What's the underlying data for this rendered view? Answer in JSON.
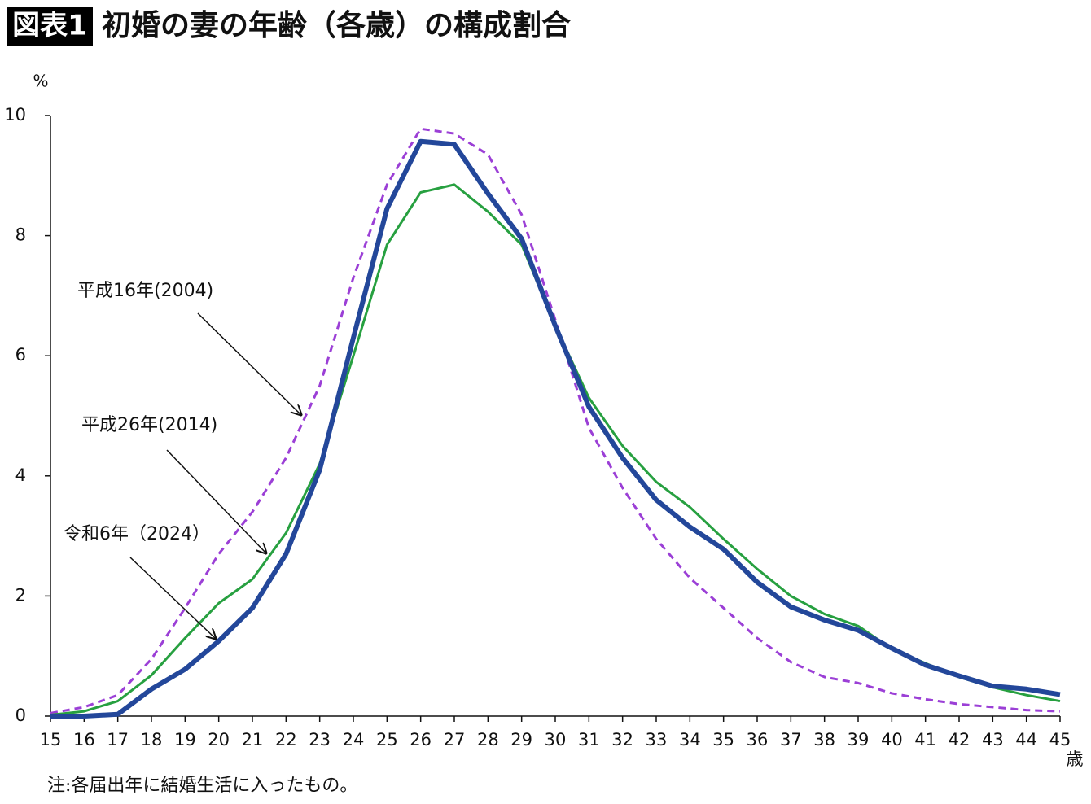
{
  "chart_data": {
    "type": "line",
    "title_tag": "図表1",
    "title": "初婚の妻の年齢（各歳）の構成割合",
    "y_unit": "%",
    "x_unit": "歳",
    "note": "注:各届出年に結婚生活に入ったもの。",
    "x": [
      15,
      16,
      17,
      18,
      19,
      20,
      21,
      22,
      23,
      24,
      25,
      26,
      27,
      28,
      29,
      30,
      31,
      32,
      33,
      34,
      35,
      36,
      37,
      38,
      39,
      40,
      41,
      42,
      43,
      44,
      45
    ],
    "xlim": [
      15,
      45
    ],
    "xticks": [
      15,
      16,
      17,
      18,
      19,
      20,
      21,
      22,
      23,
      24,
      25,
      26,
      27,
      28,
      29,
      30,
      31,
      32,
      33,
      34,
      35,
      36,
      37,
      38,
      39,
      40,
      41,
      42,
      43,
      44,
      45
    ],
    "ylim": [
      0,
      10
    ],
    "yticks": [
      0,
      2,
      4,
      6,
      8,
      10
    ],
    "grid": false,
    "series": [
      {
        "name": "平成16年(2004)",
        "color": "#9b3fd6",
        "dash": true,
        "width": 3,
        "values": [
          0.05,
          0.15,
          0.35,
          0.95,
          1.8,
          2.7,
          3.4,
          4.3,
          5.5,
          7.3,
          8.85,
          9.78,
          9.7,
          9.35,
          8.35,
          6.6,
          4.8,
          3.8,
          2.95,
          2.3,
          1.8,
          1.3,
          0.9,
          0.65,
          0.55,
          0.38,
          0.28,
          0.2,
          0.15,
          0.1,
          0.08
        ]
      },
      {
        "name": "平成26年(2014)",
        "color": "#27a040",
        "dash": false,
        "width": 3,
        "values": [
          0.02,
          0.08,
          0.25,
          0.68,
          1.3,
          1.88,
          2.28,
          3.05,
          4.2,
          6.0,
          7.85,
          8.72,
          8.85,
          8.4,
          7.85,
          6.5,
          5.3,
          4.5,
          3.9,
          3.48,
          2.95,
          2.45,
          2.0,
          1.7,
          1.5,
          1.12,
          0.88,
          0.65,
          0.48,
          0.35,
          0.25
        ]
      },
      {
        "name": "令和6年（2024）",
        "color": "#23479a",
        "dash": false,
        "width": 6,
        "values": [
          0.0,
          0.0,
          0.03,
          0.45,
          0.78,
          1.25,
          1.8,
          2.7,
          4.1,
          6.3,
          8.45,
          9.57,
          9.52,
          8.7,
          7.95,
          6.5,
          5.15,
          4.3,
          3.6,
          3.15,
          2.78,
          2.23,
          1.82,
          1.6,
          1.43,
          1.13,
          0.85,
          0.67,
          0.5,
          0.45,
          0.36
        ]
      }
    ]
  }
}
